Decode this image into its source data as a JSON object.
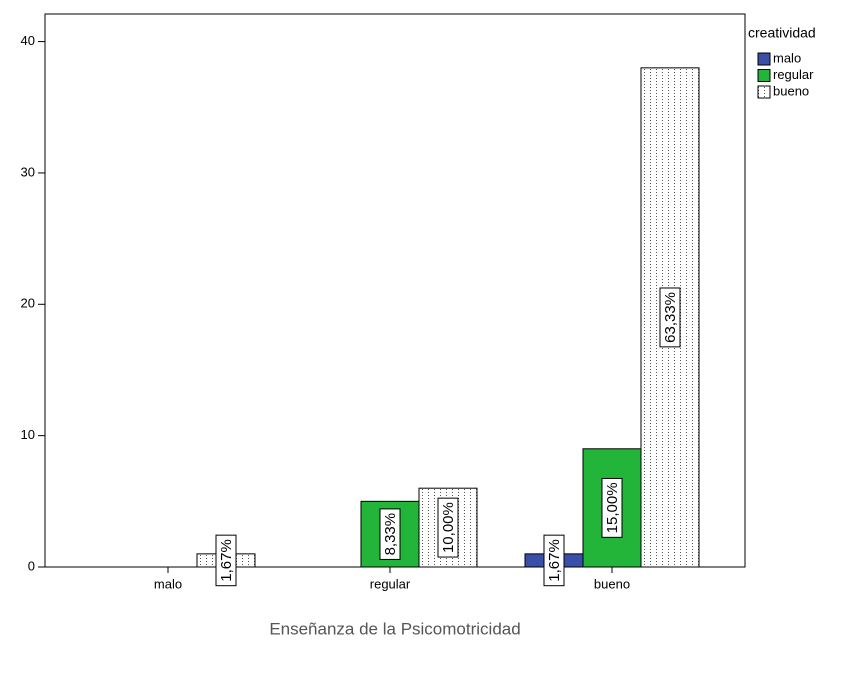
{
  "chart_data": {
    "type": "bar",
    "x_label": "Enseñanza de la Psicomotricidad",
    "legend_title": "creatividad",
    "categories": [
      "malo",
      "regular",
      "bueno"
    ],
    "series": [
      {
        "name": "malo",
        "color": "#3a50a8",
        "values": [
          0,
          0,
          1
        ],
        "value_labels": [
          null,
          null,
          "1,67%"
        ]
      },
      {
        "name": "regular",
        "color": "#22b53a",
        "values": [
          0,
          5,
          9
        ],
        "value_labels": [
          null,
          "8,33%",
          "15,00%"
        ]
      },
      {
        "name": "bueno",
        "color": "#ffffff",
        "pattern": "dotted",
        "values": [
          1,
          6,
          38
        ],
        "value_labels": [
          "1,67%",
          "10,00%",
          "63,33%"
        ]
      }
    ],
    "ylim": [
      0,
      42.1
    ],
    "yticks": [
      0,
      10,
      20,
      30,
      40
    ],
    "legend": "right"
  }
}
